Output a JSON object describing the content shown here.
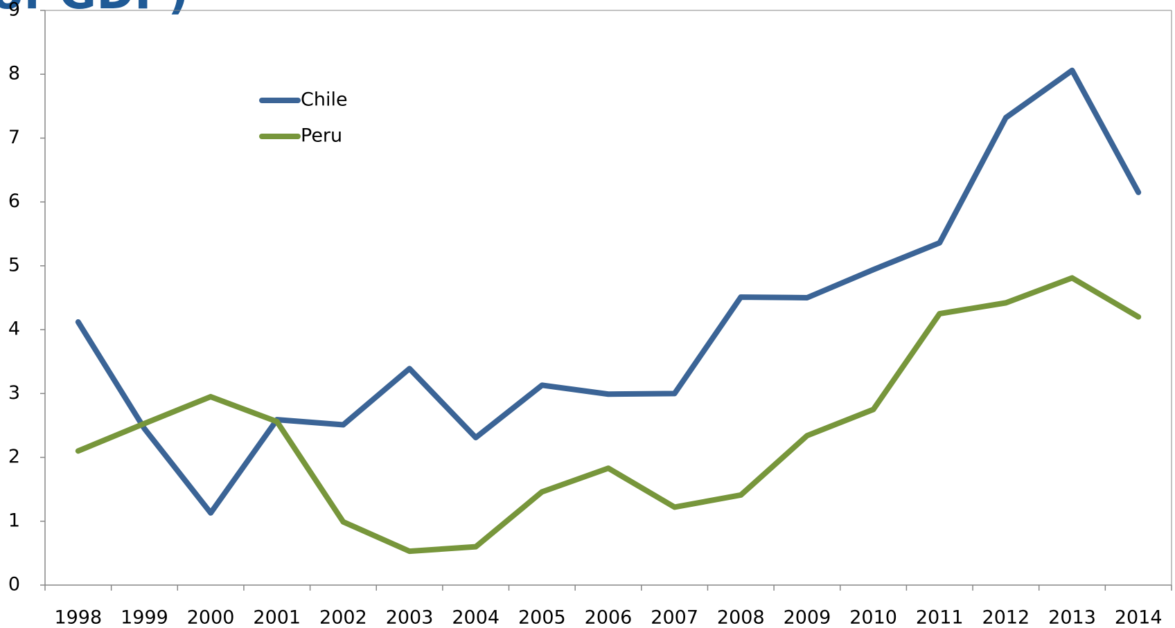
{
  "chart_data": {
    "type": "line",
    "title": "of GDP)",
    "categories": [
      "1998",
      "1999",
      "2000",
      "2001",
      "2002",
      "2003",
      "2004",
      "2005",
      "2006",
      "2007",
      "2008",
      "2009",
      "2010",
      "2011",
      "2012",
      "2013",
      "2014"
    ],
    "series": [
      {
        "name": "Chile",
        "color": "#3b6496",
        "values": [
          4.12,
          2.45,
          1.13,
          2.59,
          2.51,
          3.39,
          2.31,
          3.13,
          2.99,
          3.0,
          4.51,
          4.5,
          4.94,
          5.36,
          7.32,
          8.06,
          6.15
        ]
      },
      {
        "name": "Peru",
        "color": "#77963b",
        "values": [
          2.1,
          2.53,
          2.95,
          2.56,
          0.99,
          0.53,
          0.6,
          1.46,
          1.83,
          1.22,
          1.41,
          2.34,
          2.75,
          4.25,
          4.42,
          4.81,
          4.2
        ]
      }
    ],
    "ylim": [
      0,
      9
    ],
    "yticks": [
      0,
      1,
      2,
      3,
      4,
      5,
      6,
      7,
      8,
      9
    ],
    "grid": false
  }
}
